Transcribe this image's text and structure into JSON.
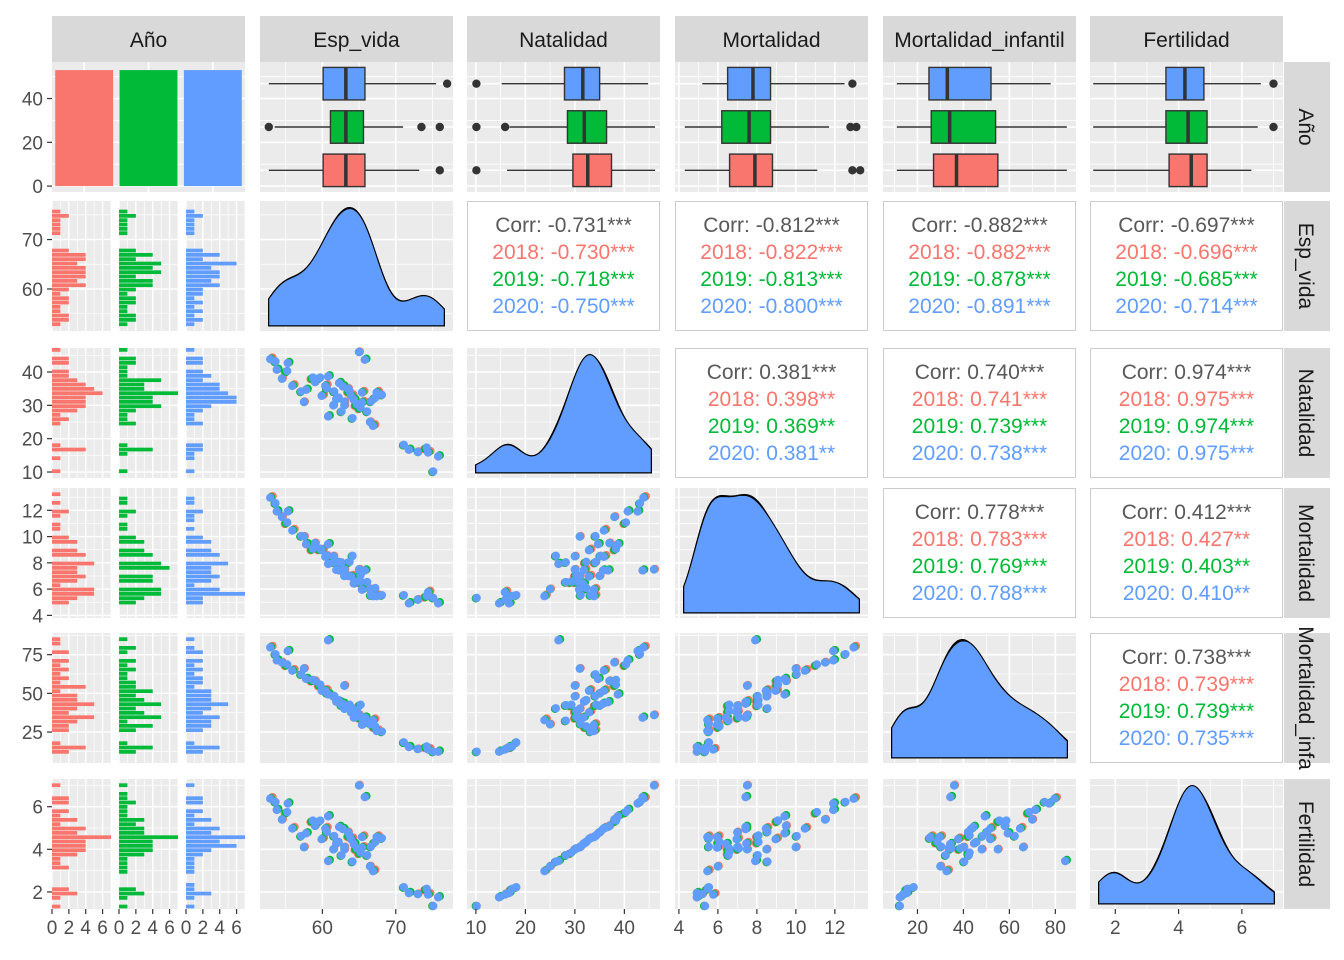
{
  "chart_data": {
    "type": "pairs",
    "variables": [
      "Año",
      "Esp_vida",
      "Natalidad",
      "Mortalidad",
      "Mortalidad_infantil",
      "Fertilidad"
    ],
    "column_strip_labels": [
      "Año",
      "Esp_vida",
      "Natalidad",
      "Mortalidad",
      "Mortalidad_infantil",
      "Fertilidad"
    ],
    "row_strip_labels": [
      "Año",
      "Esp_vida",
      "Natalidad",
      "Mortalidad",
      "Mortalidad_infa",
      "Fertilidad"
    ],
    "groups": [
      "2018",
      "2019",
      "2020"
    ],
    "colors": {
      "2018": "#F8766D",
      "2019": "#00BA38",
      "2020": "#619CFF",
      "overall": "#595959",
      "panel_bg": "#EBEBEB",
      "strip_bg": "#D9D9D9"
    },
    "axes": {
      "Año_count": {
        "min": -2.7,
        "max": 56.7,
        "ticks": [
          0,
          20,
          40
        ]
      },
      "Esp_vida": {
        "min": 51.5,
        "max": 77.8,
        "ticks": [
          60,
          70
        ]
      },
      "Natalidad": {
        "min": 8.2,
        "max": 47.2,
        "ticks": [
          10,
          20,
          30,
          40
        ]
      },
      "Mortalidad": {
        "min": 3.8,
        "max": 13.7,
        "ticks": [
          4,
          6,
          8,
          10,
          12
        ]
      },
      "Mortalidad_infantil": {
        "min": 5,
        "max": 89,
        "ticks": [
          25,
          50,
          75
        ]
      },
      "Mortalidad_infantil_x": {
        "ticks": [
          20,
          40,
          60,
          80
        ]
      },
      "Fertilidad": {
        "min": 1.2,
        "max": 7.3,
        "ticks": [
          2,
          4,
          6
        ]
      },
      "hist_count": {
        "ticks": [
          "0",
          "2",
          "4",
          "6"
        ]
      }
    },
    "bar_counts": {
      "2018": 53,
      "2019": 53,
      "2020": 53
    },
    "boxplots": {
      "Esp_vida": {
        "2018": {
          "min": 52.7,
          "q1": 60.1,
          "median": 63.2,
          "q3": 65.8,
          "max": 73.2,
          "outliers": [
            76.0
          ]
        },
        "2019": {
          "min": 53.5,
          "q1": 61.1,
          "median": 63.2,
          "q3": 65.6,
          "max": 71.0,
          "outliers": [
            52.7,
            73.5,
            76.0
          ]
        },
        "2020": {
          "min": 52.7,
          "q1": 60.1,
          "median": 63.2,
          "q3": 65.8,
          "max": 75.5,
          "outliers": [
            77.0
          ]
        }
      },
      "Natalidad": {
        "2018": {
          "min": 16.3,
          "q1": 29.6,
          "median": 32.6,
          "q3": 37.4,
          "max": 46.2,
          "outliers": [
            10.1
          ]
        },
        "2019": {
          "min": 16.8,
          "q1": 28.5,
          "median": 31.9,
          "q3": 36.4,
          "max": 46.2,
          "outliers": [
            10.1,
            15.9
          ]
        },
        "2020": {
          "min": 15.2,
          "q1": 27.9,
          "median": 31.6,
          "q3": 35.0,
          "max": 44.8,
          "outliers": [
            10.1
          ]
        }
      },
      "Mortalidad": {
        "2018": {
          "min": 4.3,
          "q1": 6.6,
          "median": 7.9,
          "q3": 8.8,
          "max": 11.1,
          "outliers": [
            12.9,
            13.3
          ]
        },
        "2019": {
          "min": 4.3,
          "q1": 6.2,
          "median": 7.6,
          "q3": 8.7,
          "max": 11.7,
          "outliers": [
            12.8,
            13.1
          ]
        },
        "2020": {
          "min": 5.2,
          "q1": 6.5,
          "median": 7.8,
          "q3": 8.7,
          "max": 12.5,
          "outliers": [
            12.9
          ]
        }
      },
      "Mortalidad_infantil": {
        "2018": {
          "min": 11.0,
          "q1": 27.0,
          "median": 37.0,
          "q3": 55.0,
          "max": 85.0,
          "outliers": []
        },
        "2019": {
          "min": 11.0,
          "q1": 26.0,
          "median": 34.0,
          "q3": 54.0,
          "max": 85.0,
          "outliers": []
        },
        "2020": {
          "min": 11.0,
          "q1": 25.0,
          "median": 33.0,
          "q3": 52.0,
          "max": 78.0,
          "outliers": []
        }
      },
      "Fertilidad": {
        "2018": {
          "min": 1.3,
          "q1": 3.7,
          "median": 4.4,
          "q3": 4.9,
          "max": 6.3,
          "outliers": []
        },
        "2019": {
          "min": 1.3,
          "q1": 3.6,
          "median": 4.3,
          "q3": 4.9,
          "max": 6.5,
          "outliers": [
            7.0
          ]
        },
        "2020": {
          "min": 1.3,
          "q1": 3.6,
          "median": 4.2,
          "q3": 4.8,
          "max": 6.6,
          "outliers": [
            7.0
          ]
        }
      }
    },
    "correlations": [
      {
        "row": "Esp_vida",
        "col": "Natalidad",
        "overall": "Corr: -0.731***",
        "groups": [
          "2018: -0.730***",
          "2019: -0.718***",
          "2020: -0.750***"
        ]
      },
      {
        "row": "Esp_vida",
        "col": "Mortalidad",
        "overall": "Corr: -0.812***",
        "groups": [
          "2018: -0.822***",
          "2019: -0.813***",
          "2020: -0.800***"
        ]
      },
      {
        "row": "Esp_vida",
        "col": "Mortalidad_infantil",
        "overall": "Corr: -0.882***",
        "groups": [
          "2018: -0.882***",
          "2019: -0.878***",
          "2020: -0.891***"
        ]
      },
      {
        "row": "Esp_vida",
        "col": "Fertilidad",
        "overall": "Corr: -0.697***",
        "groups": [
          "2018: -0.696***",
          "2019: -0.685***",
          "2020: -0.714***"
        ]
      },
      {
        "row": "Natalidad",
        "col": "Mortalidad",
        "overall": "Corr: 0.381***",
        "groups": [
          "2018: 0.398**",
          "2019: 0.369**",
          "2020: 0.381**"
        ]
      },
      {
        "row": "Natalidad",
        "col": "Mortalidad_infantil",
        "overall": "Corr: 0.740***",
        "groups": [
          "2018: 0.741***",
          "2019: 0.739***",
          "2020: 0.738***"
        ]
      },
      {
        "row": "Natalidad",
        "col": "Fertilidad",
        "overall": "Corr: 0.974***",
        "groups": [
          "2018: 0.975***",
          "2019: 0.974***",
          "2020: 0.975***"
        ]
      },
      {
        "row": "Mortalidad",
        "col": "Mortalidad_infantil",
        "overall": "Corr: 0.778***",
        "groups": [
          "2018: 0.783***",
          "2019: 0.769***",
          "2020: 0.788***"
        ]
      },
      {
        "row": "Mortalidad",
        "col": "Fertilidad",
        "overall": "Corr: 0.412***",
        "groups": [
          "2018: 0.427**",
          "2019: 0.403**",
          "2020: 0.410**"
        ]
      },
      {
        "row": "Mortalidad_infantil",
        "col": "Fertilidad",
        "overall": "Corr: 0.738***",
        "groups": [
          "2018: 0.739***",
          "2019: 0.739***",
          "2020: 0.735***"
        ]
      }
    ],
    "samples": {
      "Esp_vida": [
        53.0,
        53.5,
        54.0,
        54.5,
        55.0,
        56.0,
        57.0,
        58.0,
        59.0,
        59.5,
        60.0,
        60.5,
        61.0,
        61.5,
        62.0,
        62.0,
        62.5,
        63.0,
        63.0,
        63.5,
        64.0,
        64.0,
        64.5,
        65.0,
        65.0,
        65.5,
        66.0,
        66.0,
        66.5,
        67.0,
        67.5,
        68.0,
        55.5,
        57.5,
        58.5,
        60.5,
        61.5,
        62.5,
        63.5,
        64.5,
        65.5,
        66.5,
        61.0,
        63.0,
        65.0,
        67.0,
        71.0,
        72.0,
        73.0,
        74.0,
        74.5,
        75.0,
        76.0
      ],
      "Natalidad": [
        44,
        43,
        41,
        38,
        40,
        36,
        34,
        35,
        37,
        38,
        33,
        35,
        39,
        30,
        32,
        32,
        28,
        36,
        31,
        34,
        33,
        26,
        32,
        46,
        30,
        34,
        28,
        44,
        25,
        32,
        34,
        33,
        43,
        31,
        38,
        36,
        34,
        37,
        35,
        30,
        31,
        31,
        27,
        30,
        29,
        24,
        18,
        17,
        16,
        17,
        16,
        10,
        15
      ],
      "Mortalidad": [
        13.0,
        12.5,
        12.0,
        11.5,
        11.0,
        10.5,
        10.0,
        9.5,
        9.5,
        9.0,
        9.0,
        8.5,
        9.5,
        8.5,
        8.0,
        7.5,
        8.0,
        7.5,
        7.0,
        8.0,
        7.0,
        8.5,
        6.5,
        7.5,
        7.0,
        6.0,
        6.5,
        7.5,
        6.0,
        6.0,
        5.5,
        5.5,
        12.0,
        10.0,
        9.0,
        8.5,
        8.0,
        7.5,
        7.0,
        6.5,
        6.0,
        5.5,
        8.0,
        7.5,
        6.5,
        5.5,
        5.5,
        5.0,
        5.2,
        5.4,
        5.8,
        5.3,
        5.0
      ],
      "Mortalidad_infantil": [
        80,
        75,
        72,
        70,
        68,
        65,
        62,
        60,
        58,
        55,
        52,
        50,
        50,
        48,
        45,
        45,
        42,
        44,
        40,
        42,
        38,
        40,
        35,
        36,
        34,
        30,
        32,
        35,
        30,
        28,
        26,
        25,
        78,
        66,
        58,
        52,
        48,
        45,
        42,
        38,
        34,
        30,
        85,
        55,
        42,
        33,
        18,
        16,
        14,
        15,
        14,
        12,
        13
      ],
      "Fertilidad": [
        6.4,
        6.2,
        5.9,
        5.4,
        5.7,
        5.0,
        4.6,
        4.8,
        5.1,
        5.3,
        4.5,
        4.8,
        5.6,
        4.0,
        4.3,
        4.3,
        3.7,
        5.0,
        4.1,
        4.6,
        4.5,
        3.4,
        4.3,
        7.0,
        4.0,
        4.6,
        3.7,
        6.5,
        3.2,
        4.3,
        4.6,
        4.5,
        6.2,
        4.1,
        5.3,
        5.0,
        4.6,
        5.1,
        4.8,
        4.0,
        4.1,
        4.1,
        3.5,
        4.0,
        3.8,
        3.0,
        2.2,
        2.0,
        1.9,
        2.1,
        1.9,
        1.3,
        1.8
      ]
    }
  }
}
